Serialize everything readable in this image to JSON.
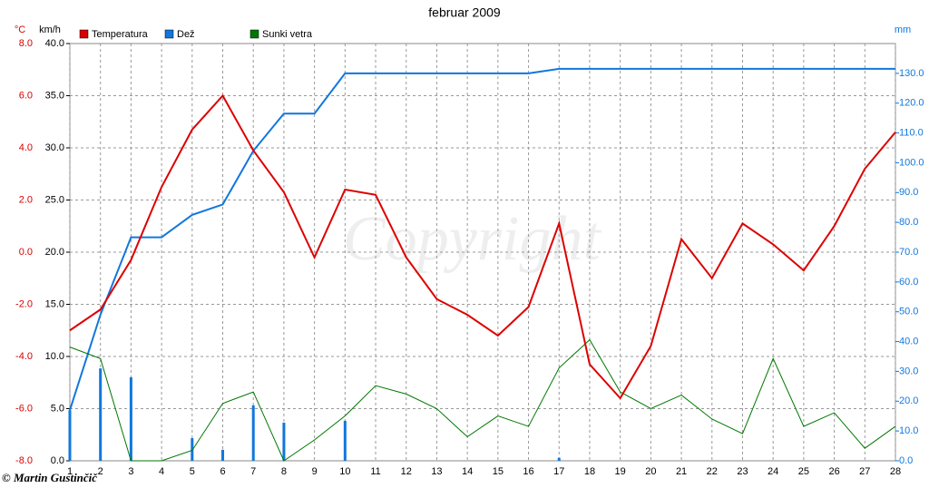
{
  "chart_data": {
    "type": "line",
    "title": "februar 2009",
    "ylabel": "°C",
    "y3label": "km/h",
    "y2label": "mm",
    "watermark": "Copyright",
    "credit": "© Martin Gustinčič",
    "grid": true,
    "x": [
      1,
      2,
      3,
      4,
      5,
      6,
      7,
      8,
      9,
      10,
      11,
      12,
      13,
      14,
      15,
      16,
      17,
      18,
      19,
      20,
      21,
      22,
      23,
      24,
      25,
      26,
      27,
      28
    ],
    "xlim": [
      1,
      28
    ],
    "xticks": [
      1,
      2,
      3,
      4,
      5,
      6,
      7,
      8,
      9,
      10,
      11,
      12,
      13,
      14,
      15,
      16,
      17,
      18,
      19,
      20,
      21,
      22,
      23,
      24,
      25,
      26,
      27,
      28
    ],
    "ylim": [
      -8,
      8
    ],
    "yticks": [
      {
        "value": -8,
        "label": "-8.0"
      },
      {
        "value": -6,
        "label": "-6.0"
      },
      {
        "value": -4,
        "label": "-4.0"
      },
      {
        "value": -2,
        "label": "-2.0"
      },
      {
        "value": 0,
        "label": "0.0"
      },
      {
        "value": 2,
        "label": "2.0"
      },
      {
        "value": 4,
        "label": "4.0"
      },
      {
        "value": 6,
        "label": "6.0"
      },
      {
        "value": 8,
        "label": "8.0"
      }
    ],
    "y3lim": [
      0,
      40
    ],
    "y3ticks": [
      {
        "value": 0,
        "label": "0.0"
      },
      {
        "value": 5,
        "label": "5.0"
      },
      {
        "value": 10,
        "label": "10.0"
      },
      {
        "value": 15,
        "label": "15.0"
      },
      {
        "value": 20,
        "label": "20.0"
      },
      {
        "value": 25,
        "label": "25.0"
      },
      {
        "value": 30,
        "label": "30.0"
      },
      {
        "value": 35,
        "label": "35.0"
      },
      {
        "value": 40,
        "label": "40.0"
      }
    ],
    "y2lim": [
      0,
      140
    ],
    "y2ticks": [
      {
        "value": 0,
        "label": "0.0"
      },
      {
        "value": 10,
        "label": "10.0"
      },
      {
        "value": 20,
        "label": "20.0"
      },
      {
        "value": 30,
        "label": "30.0"
      },
      {
        "value": 40,
        "label": "40.0"
      },
      {
        "value": 50,
        "label": "50.0"
      },
      {
        "value": 60,
        "label": "60.0"
      },
      {
        "value": 70,
        "label": "70.0"
      },
      {
        "value": 80,
        "label": "80.0"
      },
      {
        "value": 90,
        "label": "90.0"
      },
      {
        "value": 100,
        "label": "100.0"
      },
      {
        "value": 110,
        "label": "110.0"
      },
      {
        "value": 120,
        "label": "120.0"
      },
      {
        "value": 130,
        "label": "130.0"
      }
    ],
    "series": [
      {
        "name": "Temperatura",
        "color": "#dd0000",
        "axis": "y",
        "type": "line",
        "values": [
          -3.0,
          -2.2,
          -0.3,
          2.5,
          4.7,
          6.0,
          3.9,
          2.3,
          -0.2,
          2.4,
          2.2,
          -0.2,
          -1.8,
          -2.4,
          -3.2,
          -2.1,
          1.1,
          -4.3,
          -5.6,
          -3.6,
          0.5,
          -1.0,
          1.1,
          0.3,
          -0.7,
          1.0,
          3.2,
          4.6
        ]
      },
      {
        "name": "Dež",
        "color": "#1177dd",
        "axis": "y2",
        "type": "line",
        "values": [
          17,
          49,
          75,
          75,
          82.5,
          86,
          104,
          116.5,
          116.5,
          130,
          130,
          130,
          130,
          130,
          130,
          130,
          131.5,
          131.5,
          131.5,
          131.5,
          131.5,
          131.5,
          131.5,
          131.5,
          131.5,
          131.5,
          131.5,
          131.5
        ]
      },
      {
        "name": "Sunki vetra",
        "color": "#007700",
        "axis": "y3",
        "type": "line",
        "values": [
          10.9,
          9.8,
          0,
          0,
          1.0,
          5.5,
          6.6,
          0,
          2.0,
          4.3,
          7.2,
          6.4,
          5.0,
          2.3,
          4.3,
          3.3,
          8.9,
          11.6,
          6.6,
          5.0,
          6.3,
          4.0,
          2.6,
          9.8,
          3.3,
          4.6,
          1.2,
          3.3
        ]
      },
      {
        "color": "#1177dd",
        "axis": "y2",
        "type": "bar",
        "values": [
          17,
          31,
          28,
          0,
          7.6,
          3.7,
          18.6,
          12.8,
          0,
          13.4,
          0,
          0,
          0,
          0,
          0,
          0,
          1,
          0,
          0,
          0,
          0,
          0,
          0,
          0,
          0,
          0,
          0,
          0
        ]
      }
    ]
  }
}
